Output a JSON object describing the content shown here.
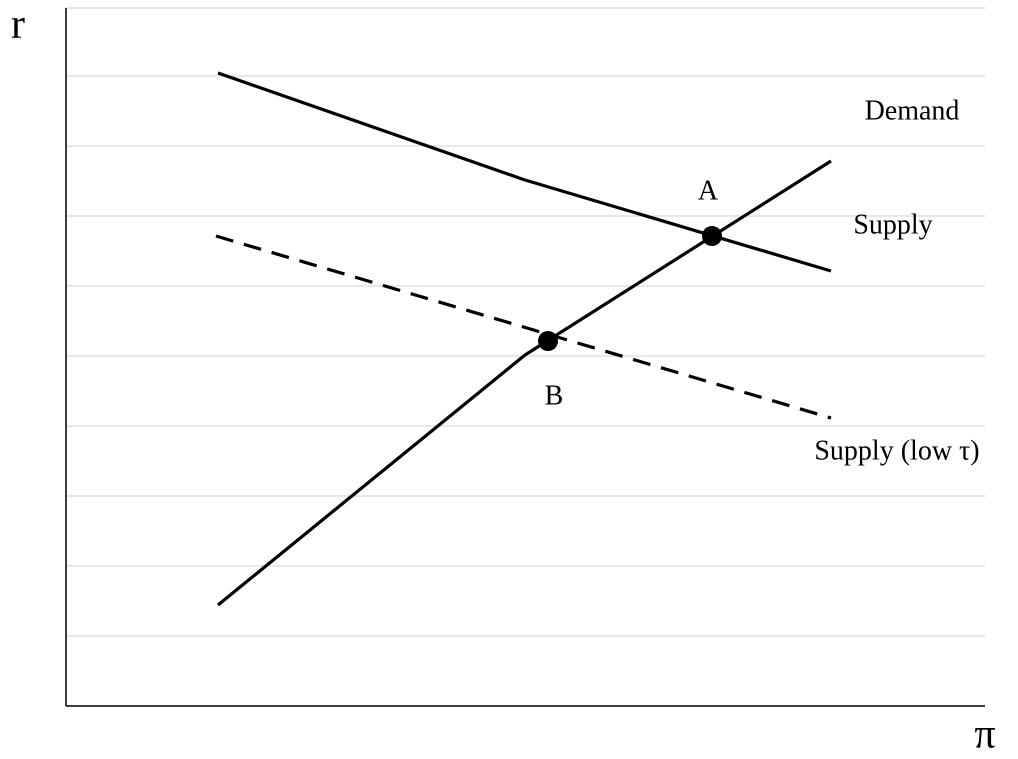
{
  "axes": {
    "y_label": "r",
    "x_label": "π"
  },
  "curves": {
    "demand": "Demand",
    "supply": "Supply",
    "supply_low": "Supply (low τ)"
  },
  "points": {
    "a": "A",
    "b": "B"
  }
}
